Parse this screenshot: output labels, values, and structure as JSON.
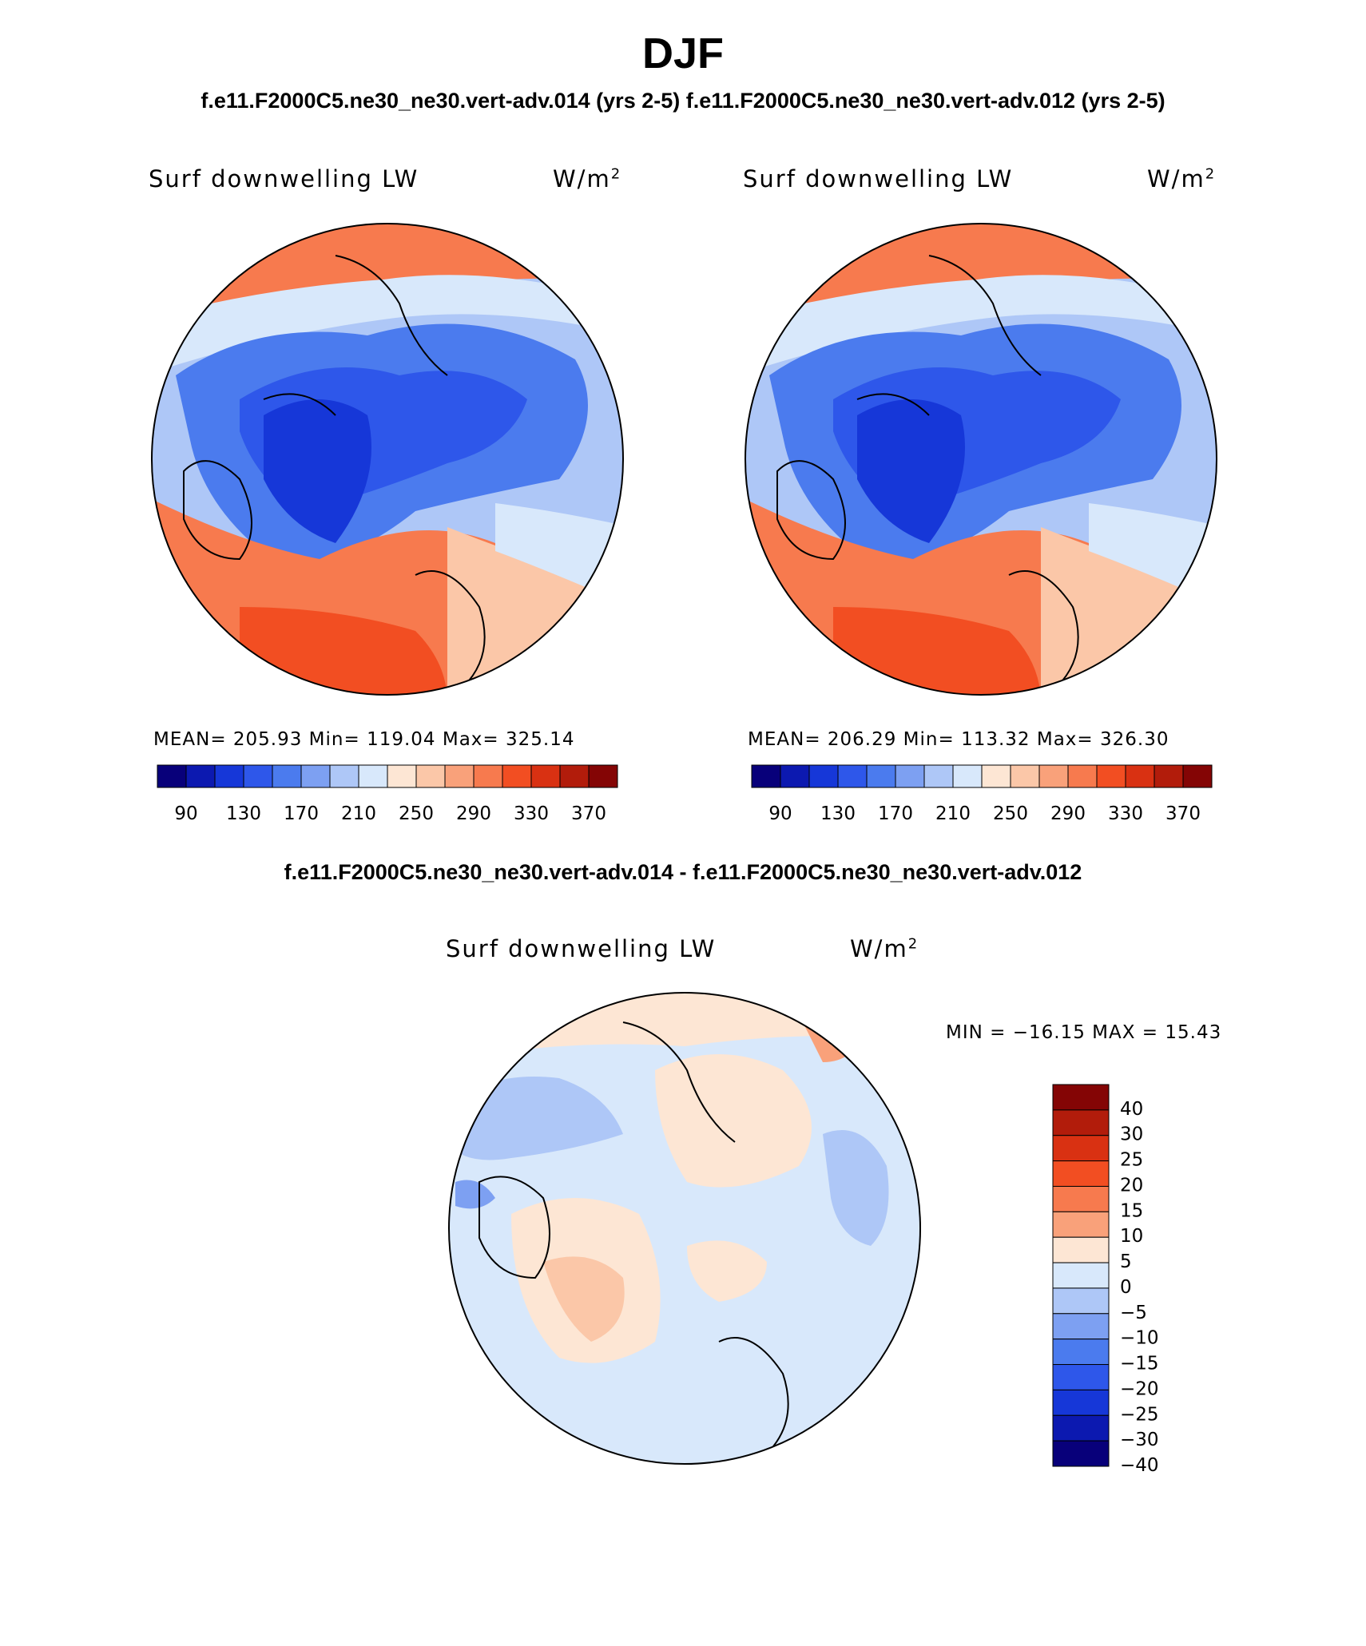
{
  "header": {
    "title": "DJF",
    "case_left": "f.e11.F2000C5.ne30_ne30.vert-adv.014 (yrs 2-5)",
    "case_right": "f.e11.F2000C5.ne30_ne30.vert-adv.012 (yrs 2-5)",
    "diff_title": "f.e11.F2000C5.ne30_ne30.vert-adv.014 - f.e11.F2000C5.ne30_ne30.vert-adv.012"
  },
  "panels": {
    "left": {
      "variable": "Surf downwelling LW",
      "units": "W/m",
      "units_sup": "2",
      "stats": "MEAN= 205.93   Min= 119.04   Max= 325.14"
    },
    "right": {
      "variable": "Surf downwelling LW",
      "units": "W/m",
      "units_sup": "2",
      "stats": "MEAN= 206.29   Min= 113.32   Max= 326.30"
    },
    "diff": {
      "variable": "Surf downwelling LW",
      "units": "W/m",
      "units_sup": "2",
      "stats": "MIN = −16.15  MAX =   15.43"
    }
  },
  "colorbar_abs": {
    "colors": [
      "#08007a",
      "#0c19b0",
      "#1637d8",
      "#2e57ea",
      "#4b7bee",
      "#7da0f2",
      "#aec7f7",
      "#d8e8fb",
      "#fde6d4",
      "#fbc7a8",
      "#f9a17a",
      "#f77a4e",
      "#f24e22",
      "#d93112",
      "#b21c0b",
      "#840505"
    ],
    "tick_labels": [
      "90",
      "130",
      "170",
      "210",
      "250",
      "290",
      "330",
      "370"
    ]
  },
  "colorbar_diff": {
    "colors": [
      "#840505",
      "#b21c0b",
      "#d93112",
      "#f24e22",
      "#f77a4e",
      "#f9a17a",
      "#fde6d4",
      "#d8e8fb",
      "#aec7f7",
      "#7da0f2",
      "#4b7bee",
      "#2e57ea",
      "#1637d8",
      "#0c19b0",
      "#08007a"
    ],
    "levels": [
      "40",
      "30",
      "25",
      "20",
      "15",
      "10",
      "5",
      "0",
      "−5",
      "−10",
      "−15",
      "−20",
      "−25",
      "−30",
      "−40"
    ]
  }
}
